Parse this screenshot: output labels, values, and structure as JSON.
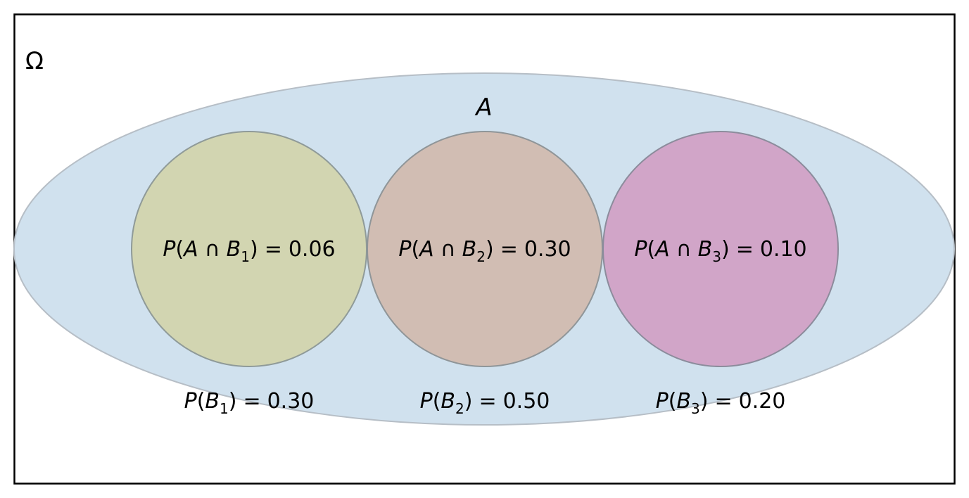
{
  "universe": {
    "symbol": "Ω"
  },
  "event_a": {
    "label": "A",
    "fill": "#d0e1ee",
    "stroke": "#b6bec6"
  },
  "partitions": [
    {
      "name": "B1",
      "set_letter": "B",
      "index": "1",
      "intersection": {
        "fn": "P",
        "open": "(",
        "a": "A",
        "op": "∩",
        "b": "B",
        "close": ")",
        "eq": "=",
        "value": "0.06"
      },
      "marginal": {
        "fn": "P",
        "open": "(",
        "b": "B",
        "close": ")",
        "eq": "=",
        "value": "0.30"
      },
      "fill": "#d2d5b1",
      "stroke": "#8f9a98"
    },
    {
      "name": "B2",
      "set_letter": "B",
      "index": "2",
      "intersection": {
        "fn": "P",
        "open": "(",
        "a": "A",
        "op": "∩",
        "b": "B",
        "close": ")",
        "eq": "=",
        "value": "0.30"
      },
      "marginal": {
        "fn": "P",
        "open": "(",
        "b": "B",
        "close": ")",
        "eq": "=",
        "value": "0.50"
      },
      "fill": "#d1bdb3",
      "stroke": "#8f9598"
    },
    {
      "name": "B3",
      "set_letter": "B",
      "index": "3",
      "intersection": {
        "fn": "P",
        "open": "(",
        "a": "A",
        "op": "∩",
        "b": "B",
        "close": ")",
        "eq": "=",
        "value": "0.10"
      },
      "marginal": {
        "fn": "P",
        "open": "(",
        "b": "B",
        "close": ")",
        "eq": "=",
        "value": "0.20"
      },
      "fill": "#d1a5c8",
      "stroke": "#8c8c9c"
    }
  ],
  "frame_color": "#000000"
}
